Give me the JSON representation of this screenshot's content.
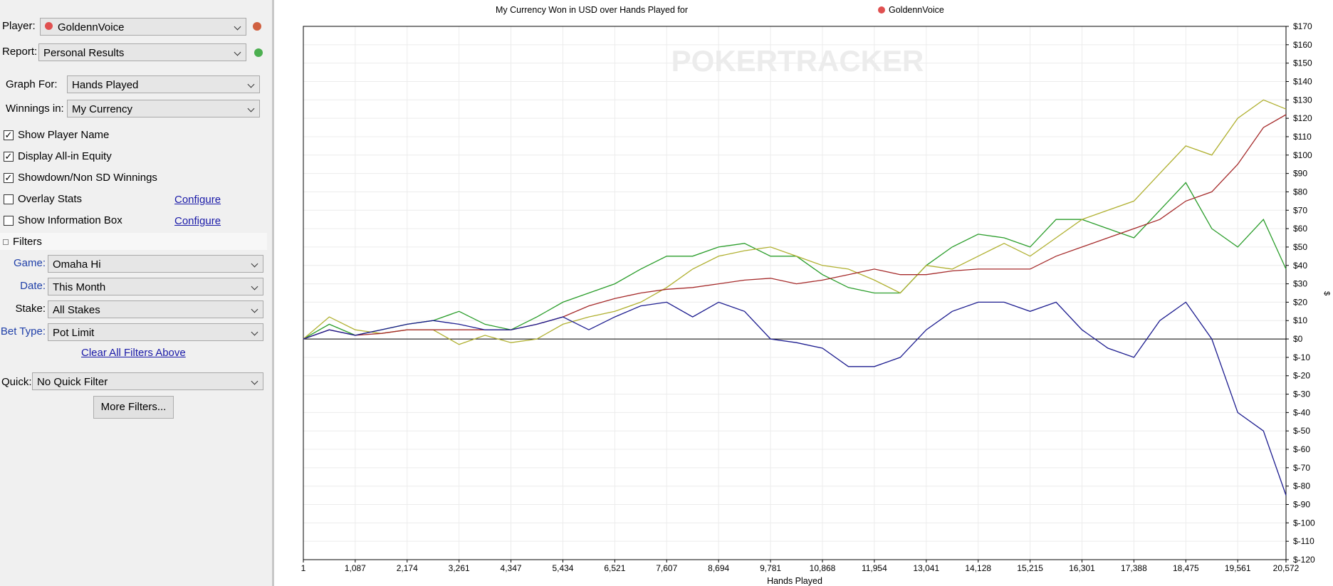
{
  "panel": {
    "player_label": "Player:",
    "player": "GoldennVoice",
    "report_label": "Report:",
    "report": "Personal Results",
    "graph_for_label": "Graph For:",
    "graph_for": "Hands Played",
    "winnings_label": "Winnings in:",
    "winnings": "My Currency",
    "options": [
      {
        "label": "Show Player Name",
        "checked": true
      },
      {
        "label": "Display All-in Equity",
        "checked": true
      },
      {
        "label": "Showdown/Non SD Winnings",
        "checked": true
      },
      {
        "label": "Overlay Stats",
        "checked": false
      },
      {
        "label": "Show Information Box",
        "checked": false
      }
    ],
    "configure_overlay": "Configure",
    "configure_info": "Configure",
    "filters_title": "Filters",
    "filters": [
      {
        "label": "Game:",
        "value": "Omaha Hi"
      },
      {
        "label": "Date:",
        "value": "This Month"
      },
      {
        "label": "Stake:",
        "value": "All Stakes"
      },
      {
        "label": "Bet Type:",
        "value": "Pot Limit"
      }
    ],
    "clear_filters": "Clear All Filters Above",
    "quick_label": "Quick:",
    "quick": "No Quick Filter",
    "more_filters": "More Filters..."
  },
  "chart_data": {
    "type": "line",
    "title": "My Currency Won in USD over Hands Played for",
    "player": "GoldennVoice",
    "watermark": "POKERTRACKER",
    "x_label": "Hands Played",
    "y_label": "$",
    "grid": true,
    "x": [
      1,
      543,
      1087,
      1630,
      2174,
      2717,
      3261,
      3804,
      4347,
      4890,
      5434,
      5977,
      6521,
      7064,
      7607,
      8150,
      8694,
      9237,
      9781,
      10324,
      10868,
      11411,
      11954,
      12497,
      13041,
      13584,
      14128,
      14671,
      15215,
      15758,
      16301,
      16844,
      17388,
      17931,
      18475,
      19018,
      19561,
      20100,
      20572
    ],
    "xlim": [
      1,
      20572
    ],
    "xticks": [
      1,
      {
        "value": 1087,
        "label": "1,087"
      },
      {
        "value": 2174,
        "label": "2,174"
      },
      {
        "value": 3261,
        "label": "3,261"
      },
      {
        "value": 4347,
        "label": "4,347"
      },
      {
        "value": 5434,
        "label": "5,434"
      },
      {
        "value": 6521,
        "label": "6,521"
      },
      {
        "value": 7607,
        "label": "7,607"
      },
      {
        "value": 8694,
        "label": "8,694"
      },
      {
        "value": 9781,
        "label": "9,781"
      },
      {
        "value": 10868,
        "label": "10,868"
      },
      {
        "value": 11954,
        "label": "11,954"
      },
      {
        "value": 13041,
        "label": "13,041"
      },
      {
        "value": 14128,
        "label": "14,128"
      },
      {
        "value": 15215,
        "label": "15,215"
      },
      {
        "value": 16301,
        "label": "16,301"
      },
      {
        "value": 17388,
        "label": "17,388"
      },
      {
        "value": 18475,
        "label": "18,475"
      },
      {
        "value": 19561,
        "label": "19,561"
      },
      {
        "value": 20572,
        "label": "20,572"
      }
    ],
    "ylim": [
      -120,
      170
    ],
    "yticks": [
      {
        "value": 170,
        "label": "$170"
      },
      {
        "value": 160,
        "label": "$160"
      },
      {
        "value": 150,
        "label": "$150"
      },
      {
        "value": 140,
        "label": "$140"
      },
      {
        "value": 130,
        "label": "$130"
      },
      {
        "value": 120,
        "label": "$120"
      },
      {
        "value": 110,
        "label": "$110"
      },
      {
        "value": 100,
        "label": "$100"
      },
      {
        "value": 90,
        "label": "$90"
      },
      {
        "value": 80,
        "label": "$80"
      },
      {
        "value": 70,
        "label": "$70"
      },
      {
        "value": 60,
        "label": "$60"
      },
      {
        "value": 50,
        "label": "$50"
      },
      {
        "value": 40,
        "label": "$40"
      },
      {
        "value": 30,
        "label": "$30"
      },
      {
        "value": 20,
        "label": "$20"
      },
      {
        "value": 10,
        "label": "$10"
      },
      {
        "value": 0,
        "label": "$0"
      },
      {
        "value": -10,
        "label": "$-10"
      },
      {
        "value": -20,
        "label": "$-20"
      },
      {
        "value": -30,
        "label": "$-30"
      },
      {
        "value": -40,
        "label": "$-40"
      },
      {
        "value": -50,
        "label": "$-50"
      },
      {
        "value": -60,
        "label": "$-60"
      },
      {
        "value": -70,
        "label": "$-70"
      },
      {
        "value": -80,
        "label": "$-80"
      },
      {
        "value": -90,
        "label": "$-90"
      },
      {
        "value": -100,
        "label": "$-100"
      },
      {
        "value": -110,
        "label": "$-110"
      },
      {
        "value": -120,
        "label": "$-120"
      }
    ],
    "series": [
      {
        "color": "#2a9d2a",
        "values": [
          0,
          8,
          2,
          5,
          8,
          10,
          15,
          8,
          5,
          12,
          20,
          25,
          30,
          38,
          45,
          45,
          50,
          52,
          45,
          45,
          35,
          28,
          25,
          25,
          40,
          50,
          57,
          55,
          50,
          65,
          65,
          60,
          55,
          70,
          85,
          60,
          50,
          65,
          38
        ]
      },
      {
        "color": "#b0b030",
        "values": [
          0,
          12,
          5,
          3,
          5,
          5,
          -3,
          2,
          -2,
          0,
          8,
          12,
          15,
          20,
          28,
          38,
          45,
          48,
          50,
          45,
          40,
          38,
          32,
          25,
          40,
          38,
          45,
          52,
          45,
          55,
          65,
          70,
          75,
          90,
          105,
          100,
          120,
          130,
          125
        ]
      },
      {
        "color": "#a52a2a",
        "values": [
          0,
          5,
          2,
          3,
          5,
          5,
          5,
          5,
          5,
          8,
          12,
          18,
          22,
          25,
          27,
          28,
          30,
          32,
          33,
          30,
          32,
          35,
          38,
          35,
          35,
          37,
          38,
          38,
          38,
          45,
          50,
          55,
          60,
          65,
          75,
          80,
          95,
          115,
          122
        ]
      },
      {
        "color": "#1c1c8f",
        "values": [
          0,
          5,
          2,
          5,
          8,
          10,
          8,
          5,
          5,
          8,
          12,
          5,
          12,
          18,
          20,
          12,
          20,
          15,
          0,
          -2,
          -5,
          -15,
          -15,
          -10,
          5,
          15,
          20,
          20,
          15,
          20,
          5,
          -5,
          -10,
          10,
          20,
          0,
          -40,
          -50,
          -85
        ]
      }
    ]
  }
}
